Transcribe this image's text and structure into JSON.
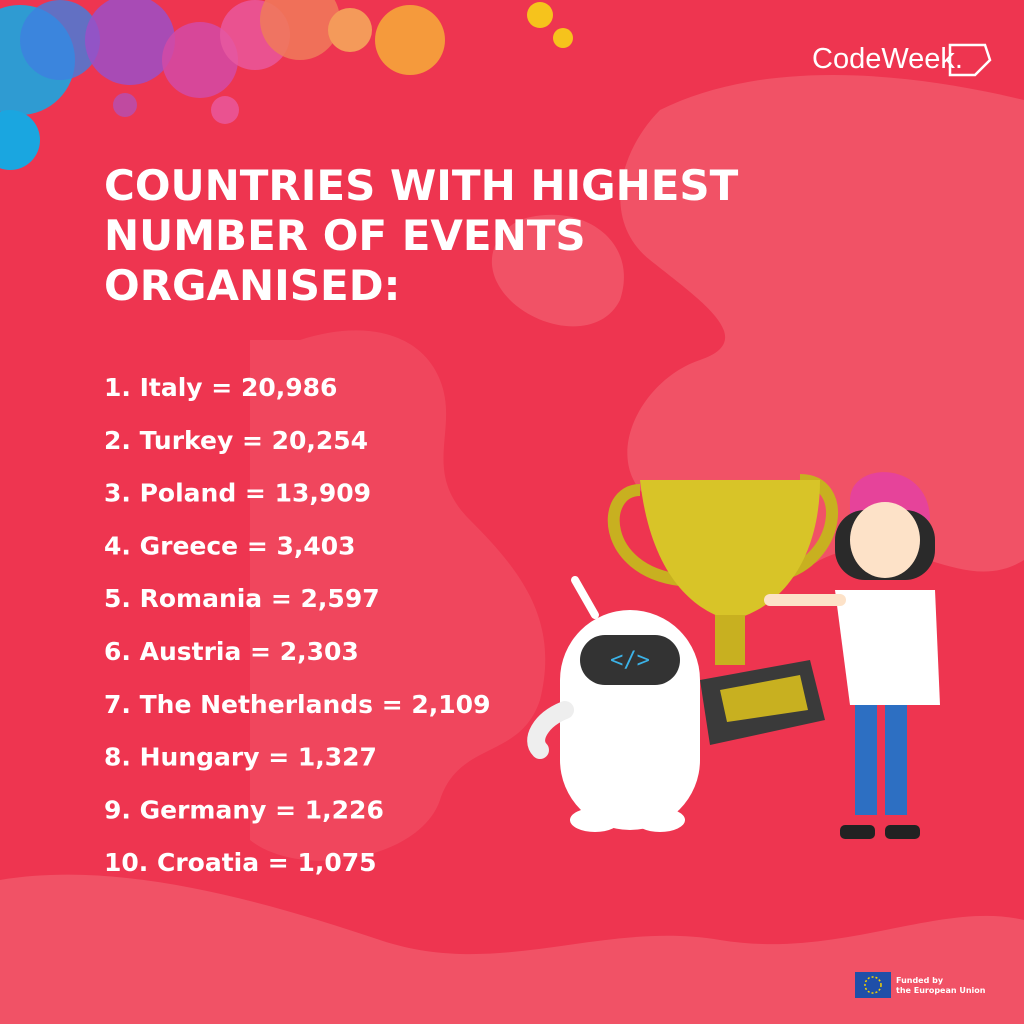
{
  "logo": {
    "text": "CodeWeek."
  },
  "title": {
    "lines": [
      "COUNTRIES WITH HIGHEST",
      "NUMBER OF EVENTS",
      "ORGANISED:"
    ]
  },
  "ranking": {
    "items": [
      "1. Italy = 20,986",
      "2. Turkey = 20,254",
      "3. Poland = 13,909",
      "4. Greece = 3,403",
      "5. Romania = 2,597",
      "6. Austria = 2,303",
      "7. The Netherlands = 2,109",
      "8. Hungary = 1,327",
      "9. Germany = 1,226",
      "10. Croatia = 1,075"
    ]
  },
  "footer": {
    "lines": [
      "Funded by",
      "the European Union"
    ]
  }
}
